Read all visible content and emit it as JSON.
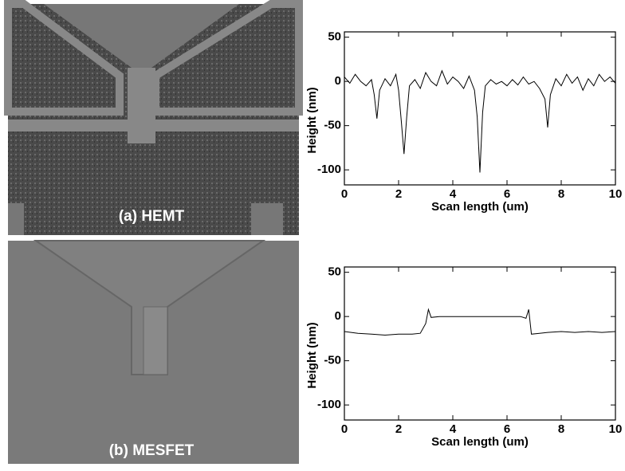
{
  "panels": [
    {
      "label": "(a) HEMT"
    },
    {
      "label": "(b) MESFET"
    }
  ],
  "chart_data": [
    {
      "type": "line",
      "xlabel": "Scan length (um)",
      "ylabel": "Height (nm)",
      "xlim": [
        0,
        10
      ],
      "ylim": [
        -117,
        56
      ],
      "xticks": [
        0,
        2,
        4,
        6,
        8,
        10
      ],
      "yticks": [
        -100,
        -50,
        0,
        50
      ],
      "color": "#000000",
      "x": [
        0,
        0.2,
        0.4,
        0.6,
        0.8,
        1.0,
        1.1,
        1.2,
        1.3,
        1.5,
        1.7,
        1.9,
        2.0,
        2.1,
        2.2,
        2.3,
        2.4,
        2.6,
        2.8,
        3.0,
        3.2,
        3.4,
        3.6,
        3.8,
        4.0,
        4.2,
        4.4,
        4.6,
        4.8,
        4.9,
        5.0,
        5.1,
        5.2,
        5.4,
        5.6,
        5.8,
        6.0,
        6.2,
        6.4,
        6.6,
        6.8,
        7.0,
        7.2,
        7.4,
        7.5,
        7.6,
        7.8,
        8.0,
        8.2,
        8.4,
        8.6,
        8.8,
        9.0,
        9.2,
        9.4,
        9.6,
        9.8,
        10
      ],
      "values": [
        5,
        -2,
        8,
        0,
        -5,
        2,
        -15,
        -42,
        -10,
        3,
        -5,
        8,
        -10,
        -45,
        -82,
        -40,
        -5,
        2,
        -8,
        10,
        0,
        -5,
        12,
        -3,
        5,
        0,
        -8,
        6,
        -10,
        -40,
        -103,
        -35,
        -5,
        2,
        -3,
        0,
        -5,
        2,
        -4,
        5,
        -3,
        0,
        -8,
        -20,
        -52,
        -15,
        3,
        -5,
        8,
        -2,
        5,
        -10,
        3,
        -5,
        8,
        0,
        5,
        -2
      ]
    },
    {
      "type": "line",
      "xlabel": "Scan length (um)",
      "ylabel": "Height (nm)",
      "xlim": [
        0,
        10
      ],
      "ylim": [
        -117,
        56
      ],
      "xticks": [
        0,
        2,
        4,
        6,
        8,
        10
      ],
      "yticks": [
        -100,
        -50,
        0,
        50
      ],
      "color": "#000000",
      "x": [
        0,
        0.5,
        1,
        1.5,
        2,
        2.5,
        2.8,
        3.0,
        3.1,
        3.2,
        3.5,
        4,
        4.5,
        5,
        5.5,
        6,
        6.5,
        6.7,
        6.8,
        6.9,
        7.2,
        7.5,
        8,
        8.5,
        9,
        9.5,
        10
      ],
      "values": [
        -17,
        -19,
        -20,
        -21,
        -20,
        -20,
        -19,
        -8,
        8,
        -1,
        0,
        0,
        0,
        0,
        0,
        0,
        0,
        -2,
        8,
        -20,
        -19,
        -18,
        -17,
        -18,
        -17,
        -18,
        -17
      ]
    }
  ]
}
